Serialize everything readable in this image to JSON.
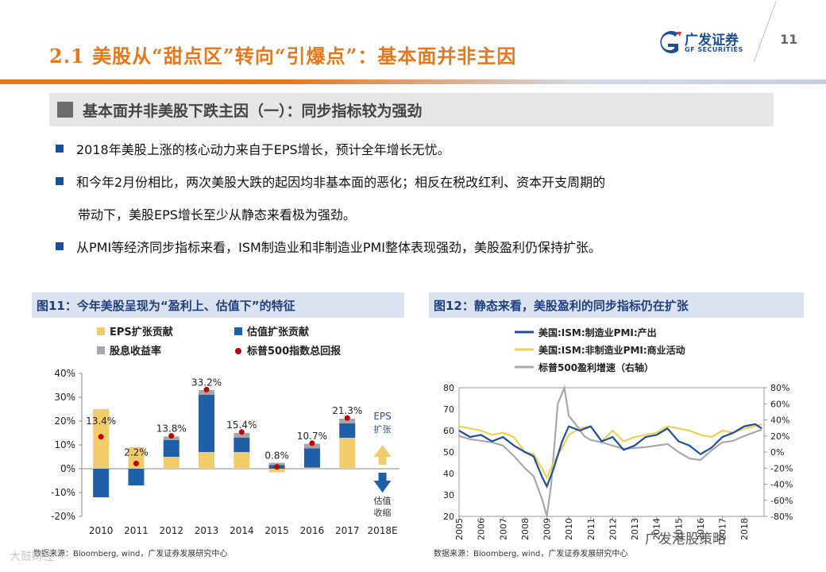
{
  "header": {
    "title": "2.1 美股从“甜点区”转向“引爆点”：基本面并非主因",
    "logo_name": "广发证券",
    "logo_sub": "GF SECURITIES",
    "page_number": "11"
  },
  "subtitle": "基本面并非美股下跌主因（一）：同步指标较为强劲",
  "bullets": [
    {
      "text": "2018年美股上涨的核心动力来自于EPS增长，预计全年增长无忧。"
    },
    {
      "text": "和今年2月份相比，两次美股大跌的起因均非基本面的恶化；相反在税改红利、资本开支周期的",
      "cont": "带动下，美股EPS增长至少从静态来看极为强劲。"
    },
    {
      "text": "从PMI等经济同步指标来看，ISM制造业和非制造业PMI整体表现强劲，美股盈利仍保持扩张。"
    }
  ],
  "watermark": {
    "left": "大鼓财经",
    "right": "广发港股策略"
  },
  "chart_data": [
    {
      "type": "bar",
      "panel_title": "图11：今年美股呈现为“盈利上、估值下”的特征",
      "source": "数据来源：Bloomberg, wind，广发证券发展研究中心",
      "categories": [
        "2010",
        "2011",
        "2012",
        "2013",
        "2014",
        "2015",
        "2016",
        "2017",
        "2018E"
      ],
      "series": [
        {
          "name": "EPS扩张贡献",
          "color": "#f2cb6b",
          "values": [
            25,
            9,
            5,
            7,
            7,
            -1.5,
            0.5,
            13,
            null
          ]
        },
        {
          "name": "估值扩张贡献",
          "color": "#1f5fa8",
          "values": [
            -12,
            -7,
            7,
            24,
            6,
            1.5,
            8,
            6,
            null
          ]
        },
        {
          "name": "股息收益率",
          "color": "#a6a6a6",
          "values": [
            0,
            0,
            1.5,
            2,
            2,
            1,
            2,
            2,
            null
          ]
        },
        {
          "name": "标普500指数总回报",
          "color": "#c00000",
          "values": [
            13.4,
            2.2,
            13.8,
            33.2,
            15.4,
            0.8,
            10.7,
            21.3,
            null
          ]
        }
      ],
      "data_labels": [
        "13.4%",
        "2.2%",
        "13.8%",
        "33.2%",
        "15.4%",
        "0.8%",
        "10.7%",
        "21.3%"
      ],
      "yticks": [
        "40%",
        "30%",
        "20%",
        "10%",
        "0%",
        "-10%",
        "-20%"
      ],
      "ylim": [
        -20,
        40
      ],
      "annotations": {
        "up_top": "EPS",
        "up_bottom": "扩张",
        "down_top": "估值",
        "down_bottom": "收缩"
      }
    },
    {
      "type": "line",
      "panel_title": "图12：静态来看，美股盈利的同步指标仍在扩张",
      "source": "数据来源：Bloomberg, wind，广发证券发展研究中心",
      "series": [
        {
          "name": "美国:ISM:制造业PMI:产出",
          "color": "#1f4e9c",
          "x": [
            2005,
            2005.5,
            2006,
            2006.5,
            2007,
            2007.5,
            2008,
            2008.4,
            2008.8,
            2009,
            2009.3,
            2009.7,
            2010,
            2010.5,
            2011,
            2011.5,
            2012,
            2012.5,
            2013,
            2013.5,
            2014,
            2014.5,
            2015,
            2015.5,
            2016,
            2016.5,
            2017,
            2017.5,
            2018,
            2018.5,
            2018.8
          ],
          "y": [
            60,
            57,
            58,
            55,
            57,
            53,
            50,
            48,
            38,
            34,
            42,
            55,
            62,
            60,
            62,
            55,
            57,
            51,
            53,
            57,
            58,
            61,
            55,
            53,
            49,
            52,
            57,
            59,
            62,
            63,
            61
          ]
        },
        {
          "name": "美国:ISM:非制造业PMI:商业活动",
          "color": "#f0d050",
          "x": [
            2005,
            2005.5,
            2006,
            2006.5,
            2007,
            2007.5,
            2008,
            2008.4,
            2008.8,
            2009,
            2009.3,
            2009.7,
            2010,
            2010.5,
            2011,
            2011.5,
            2012,
            2012.5,
            2013,
            2013.5,
            2014,
            2014.5,
            2015,
            2015.5,
            2016,
            2016.5,
            2017,
            2017.5,
            2018,
            2018.5,
            2018.8
          ],
          "y": [
            62,
            61,
            60,
            58,
            59,
            57,
            50,
            49,
            42,
            38,
            45,
            52,
            58,
            61,
            62,
            55,
            60,
            55,
            57,
            58,
            59,
            62,
            61,
            60,
            58,
            57,
            60,
            59,
            61,
            62,
            63
          ]
        },
        {
          "name": "标普500盈利增速（右轴）",
          "color": "#a8a8a8",
          "x": [
            2005,
            2005.5,
            2006,
            2006.5,
            2007,
            2007.5,
            2008,
            2008.4,
            2008.8,
            2009,
            2009.2,
            2009.5,
            2009.8,
            2010,
            2010.3,
            2010.7,
            2011,
            2011.5,
            2012,
            2012.5,
            2013,
            2013.5,
            2014,
            2014.5,
            2015,
            2015.5,
            2016,
            2016.5,
            2017,
            2017.5,
            2018,
            2018.5,
            2018.8
          ],
          "y": [
            20,
            16,
            14,
            12,
            8,
            -5,
            -20,
            -30,
            -60,
            -80,
            -40,
            60,
            80,
            45,
            35,
            20,
            15,
            12,
            8,
            4,
            5,
            6,
            8,
            10,
            0,
            -8,
            -10,
            2,
            12,
            14,
            20,
            25,
            28
          ]
        }
      ],
      "x_ticks": [
        "2005",
        "2006",
        "2007",
        "2008",
        "2009",
        "2010",
        "2011",
        "2012",
        "2013",
        "2014",
        "2015",
        "2016",
        "2017",
        "2018"
      ],
      "xlim": [
        2005,
        2018.9
      ],
      "y_left_ticks": [
        "80",
        "70",
        "60",
        "50",
        "40",
        "30",
        "20"
      ],
      "ylim_left": [
        20,
        80
      ],
      "y_right_ticks": [
        "80%",
        "60%",
        "40%",
        "20%",
        "0%",
        "-20%",
        "-40%",
        "-60%",
        "-80%"
      ],
      "ylim_right": [
        -80,
        80
      ]
    }
  ]
}
